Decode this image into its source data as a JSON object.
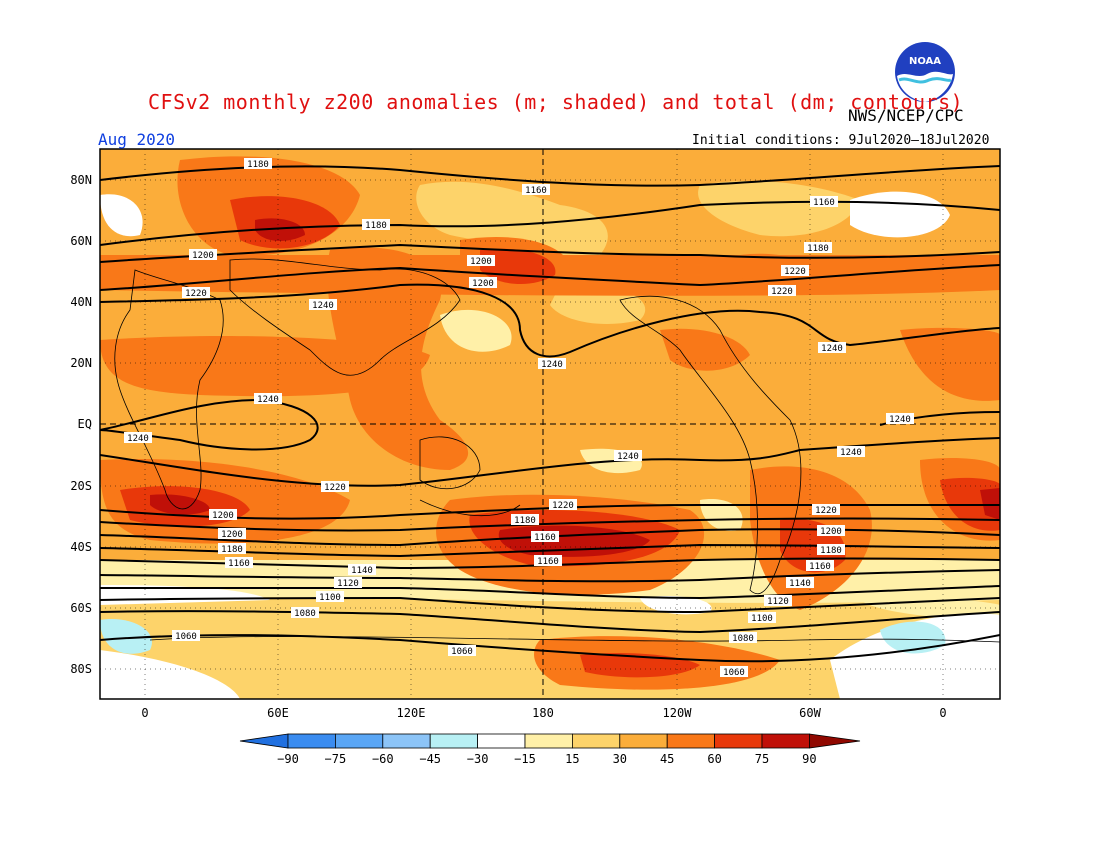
{
  "header": {
    "title": "CFSv2 monthly z200 anomalies (m; shaded) and total (dm; contours)",
    "agency": "NWS/NCEP/CPC",
    "valid_month": "Aug 2020",
    "initial_conditions": "Initial conditions: 9Jul2020–18Jul2020",
    "logo_text": "NOAA"
  },
  "axes": {
    "lat_ticks": [
      "80N",
      "60N",
      "40N",
      "20N",
      "EQ",
      "20S",
      "40S",
      "60S",
      "80S"
    ],
    "lon_ticks": [
      "0",
      "60E",
      "120E",
      "180",
      "120W",
      "60W",
      "0"
    ]
  },
  "colorbar": {
    "ticks": [
      "−90",
      "−75",
      "−60",
      "−45",
      "−30",
      "−15",
      "15",
      "30",
      "45",
      "60",
      "75",
      "90"
    ],
    "colors": [
      "#2070e0",
      "#3a8cf0",
      "#5aa6f5",
      "#8cc4f7",
      "#b8f0f4",
      "#ffffff",
      "#fff0a8",
      "#fdd36a",
      "#fbad3a",
      "#f97818",
      "#e8380a",
      "#c01008",
      "#900800"
    ]
  },
  "contour_labels": [
    {
      "text": "1180"
    },
    {
      "text": "1160"
    },
    {
      "text": "1160"
    },
    {
      "text": "1180"
    },
    {
      "text": "1200"
    },
    {
      "text": "1200"
    },
    {
      "text": "1180"
    },
    {
      "text": "1220"
    },
    {
      "text": "1220"
    },
    {
      "text": "1200"
    },
    {
      "text": "1220"
    },
    {
      "text": "1240"
    },
    {
      "text": "1240"
    },
    {
      "text": "1240"
    },
    {
      "text": "1240"
    },
    {
      "text": "1240"
    },
    {
      "text": "1240"
    },
    {
      "text": "1240"
    },
    {
      "text": "1240"
    },
    {
      "text": "1220"
    },
    {
      "text": "1220"
    },
    {
      "text": "1200"
    },
    {
      "text": "1200"
    },
    {
      "text": "1180"
    },
    {
      "text": "1160"
    },
    {
      "text": "1160"
    },
    {
      "text": "1180"
    },
    {
      "text": "1220"
    },
    {
      "text": "1200"
    },
    {
      "text": "1180"
    },
    {
      "text": "1160"
    },
    {
      "text": "1160"
    },
    {
      "text": "1140"
    },
    {
      "text": "1140"
    },
    {
      "text": "1120"
    },
    {
      "text": "1120"
    },
    {
      "text": "1100"
    },
    {
      "text": "1100"
    },
    {
      "text": "1080"
    },
    {
      "text": "1080"
    },
    {
      "text": "1060"
    },
    {
      "text": "1060"
    },
    {
      "text": "1060"
    }
  ]
}
